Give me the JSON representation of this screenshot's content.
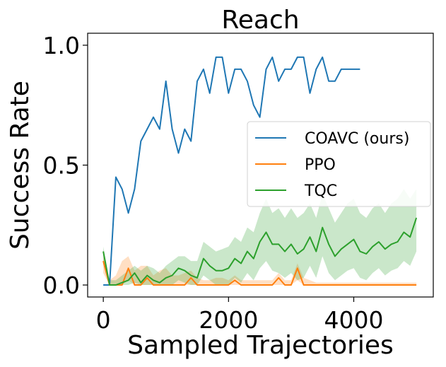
{
  "chart_data": {
    "type": "line",
    "title": "Reach",
    "xlabel": "Sampled Trajectories",
    "ylabel": "Success Rate",
    "xlim": [
      -250,
      5270
    ],
    "ylim": [
      -0.05,
      1.05
    ],
    "xticks": [
      0,
      2000,
      4000
    ],
    "xtick_labels": [
      "0",
      "2000",
      "4000"
    ],
    "yticks": [
      0.0,
      0.5,
      1.0
    ],
    "ytick_labels": [
      "0.0",
      "0.5",
      "1.0"
    ],
    "grid": false,
    "legend_position": "center-right",
    "series": [
      {
        "name": "COAVC (ours)",
        "color": "#1f77b4",
        "x": [
          0,
          100,
          200,
          300,
          400,
          500,
          600,
          700,
          800,
          900,
          1000,
          1100,
          1200,
          1300,
          1400,
          1500,
          1600,
          1700,
          1800,
          1900,
          2000,
          2100,
          2200,
          2300,
          2400,
          2500,
          2600,
          2700,
          2800,
          2900,
          3000,
          3100,
          3200,
          3300,
          3400,
          3500,
          3600,
          3700,
          3800,
          3900,
          4000,
          4100
        ],
        "y": [
          0.0,
          0.0,
          0.45,
          0.4,
          0.3,
          0.4,
          0.6,
          0.65,
          0.7,
          0.65,
          0.85,
          0.65,
          0.55,
          0.65,
          0.6,
          0.85,
          0.9,
          0.8,
          0.95,
          0.95,
          0.8,
          0.9,
          0.9,
          0.85,
          0.75,
          0.7,
          0.9,
          0.95,
          0.85,
          0.9,
          0.9,
          0.95,
          0.95,
          0.8,
          0.9,
          0.95,
          0.85,
          0.85,
          0.9,
          0.9,
          0.9,
          0.9
        ]
      },
      {
        "name": "PPO",
        "color": "#ff7f0e",
        "x": [
          0,
          100,
          200,
          300,
          400,
          500,
          600,
          700,
          800,
          900,
          1000,
          1100,
          1200,
          1300,
          1400,
          1500,
          1600,
          1700,
          1800,
          1900,
          2000,
          2100,
          2200,
          2300,
          2400,
          2500,
          2600,
          2700,
          2800,
          2900,
          3000,
          3100,
          3200,
          3300,
          3400,
          3500,
          3600,
          3700,
          3800,
          3900,
          4000,
          4100,
          4200,
          4300,
          4400,
          4500,
          4600,
          4700,
          4800,
          4900,
          5000
        ],
        "y": [
          0.1,
          0.0,
          0.0,
          0.0,
          0.07,
          0.0,
          0.0,
          0.03,
          0.0,
          0.0,
          0.0,
          0.0,
          0.0,
          0.0,
          0.03,
          0.0,
          0.0,
          0.0,
          0.0,
          0.0,
          0.0,
          0.02,
          0.0,
          0.0,
          0.0,
          0.0,
          0.0,
          0.0,
          0.03,
          0.0,
          0.0,
          0.07,
          0.0,
          0.0,
          0.0,
          0.0,
          0.0,
          0.0,
          0.0,
          0.0,
          0.0,
          0.0,
          0.0,
          0.0,
          0.0,
          0.0,
          0.0,
          0.0,
          0.0,
          0.0,
          0.0
        ],
        "band_upper": [
          0.12,
          0.02,
          0.04,
          0.1,
          0.12,
          0.06,
          0.08,
          0.08,
          0.04,
          0.06,
          0.07,
          0.04,
          0.04,
          0.05,
          0.06,
          0.03,
          0.02,
          0.02,
          0.03,
          0.03,
          0.02,
          0.04,
          0.02,
          0.02,
          0.02,
          0.02,
          0.02,
          0.02,
          0.05,
          0.02,
          0.02,
          0.09,
          0.03,
          0.02,
          0.01,
          0.01,
          0.01,
          0.01,
          0.01,
          0.01,
          0.01,
          0.01,
          0.01,
          0.01,
          0.01,
          0.01,
          0.01,
          0.01,
          0.01,
          0.01,
          0.01
        ],
        "band_lower": [
          0.05,
          0.0,
          0.0,
          0.0,
          0.02,
          0.0,
          0.0,
          0.0,
          0.0,
          0.0,
          0.0,
          0.0,
          0.0,
          0.0,
          0.0,
          0.0,
          0.0,
          0.0,
          0.0,
          0.0,
          0.0,
          0.0,
          0.0,
          0.0,
          0.0,
          0.0,
          0.0,
          0.0,
          0.0,
          0.0,
          0.0,
          0.02,
          0.0,
          0.0,
          0.0,
          0.0,
          0.0,
          0.0,
          0.0,
          0.0,
          0.0,
          0.0,
          0.0,
          0.0,
          0.0,
          0.0,
          0.0,
          0.0,
          0.0,
          0.0,
          0.0
        ]
      },
      {
        "name": "TQC",
        "color": "#2ca02c",
        "x": [
          0,
          100,
          200,
          300,
          400,
          500,
          600,
          700,
          800,
          900,
          1000,
          1100,
          1200,
          1300,
          1400,
          1500,
          1600,
          1700,
          1800,
          1900,
          2000,
          2100,
          2200,
          2300,
          2400,
          2500,
          2600,
          2700,
          2800,
          2900,
          3000,
          3100,
          3200,
          3300,
          3400,
          3500,
          3600,
          3700,
          3800,
          3900,
          4000,
          4100,
          4200,
          4300,
          4400,
          4500,
          4600,
          4700,
          4800,
          4900,
          5000
        ],
        "y": [
          0.14,
          0.0,
          0.0,
          0.01,
          0.02,
          0.05,
          0.01,
          0.04,
          0.02,
          0.01,
          0.03,
          0.04,
          0.07,
          0.06,
          0.04,
          0.03,
          0.11,
          0.08,
          0.06,
          0.06,
          0.07,
          0.11,
          0.09,
          0.14,
          0.11,
          0.18,
          0.22,
          0.17,
          0.17,
          0.14,
          0.17,
          0.13,
          0.15,
          0.2,
          0.14,
          0.24,
          0.17,
          0.12,
          0.15,
          0.17,
          0.19,
          0.14,
          0.13,
          0.16,
          0.18,
          0.15,
          0.17,
          0.18,
          0.22,
          0.2,
          0.28
        ],
        "band_upper": [
          0.16,
          0.02,
          0.02,
          0.04,
          0.06,
          0.08,
          0.06,
          0.08,
          0.07,
          0.05,
          0.08,
          0.1,
          0.12,
          0.12,
          0.1,
          0.1,
          0.18,
          0.16,
          0.14,
          0.15,
          0.16,
          0.2,
          0.18,
          0.24,
          0.22,
          0.3,
          0.36,
          0.3,
          0.32,
          0.28,
          0.32,
          0.28,
          0.3,
          0.34,
          0.28,
          0.38,
          0.32,
          0.26,
          0.3,
          0.34,
          0.36,
          0.3,
          0.28,
          0.32,
          0.34,
          0.3,
          0.34,
          0.36,
          0.4,
          0.36,
          0.4
        ],
        "band_lower": [
          0.1,
          0.0,
          0.0,
          0.0,
          0.0,
          0.01,
          0.0,
          0.0,
          0.0,
          0.0,
          0.0,
          0.0,
          0.02,
          0.01,
          0.0,
          0.0,
          0.04,
          0.02,
          0.0,
          0.0,
          0.0,
          0.03,
          0.01,
          0.05,
          0.02,
          0.07,
          0.1,
          0.06,
          0.05,
          0.03,
          0.05,
          0.02,
          0.03,
          0.08,
          0.03,
          0.12,
          0.05,
          0.02,
          0.04,
          0.06,
          0.07,
          0.03,
          0.02,
          0.05,
          0.07,
          0.04,
          0.06,
          0.07,
          0.1,
          0.08,
          0.14
        ]
      }
    ]
  }
}
